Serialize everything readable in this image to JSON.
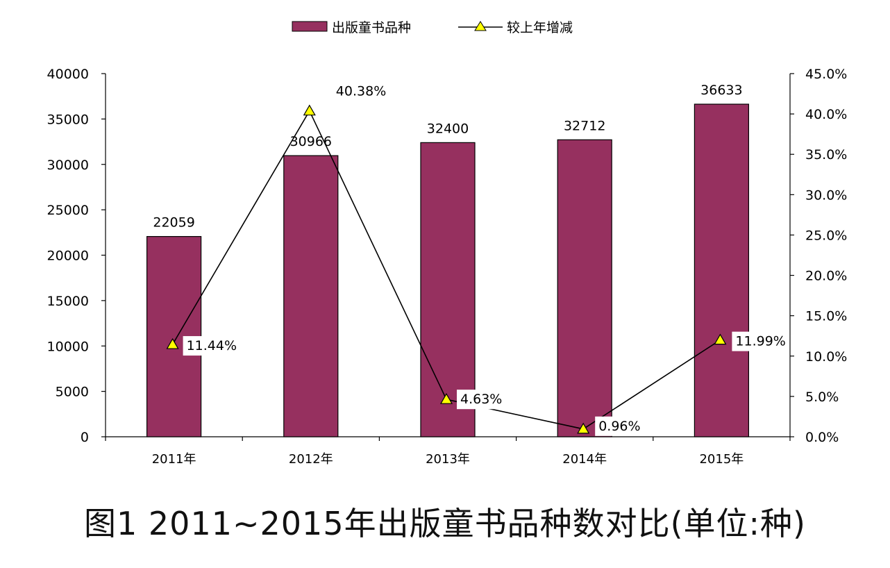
{
  "chart_data": {
    "type": "bar+line",
    "categories": [
      "2011年",
      "2012年",
      "2013年",
      "2014年",
      "2015年"
    ],
    "series": [
      {
        "name": "出版童书品种",
        "type": "bar",
        "axis": "left",
        "values": [
          22059,
          30966,
          32400,
          32712,
          36633
        ],
        "labels": [
          "22059",
          "30966",
          "32400",
          "32712",
          "36633"
        ],
        "color": "#96305F"
      },
      {
        "name": "较上年增减",
        "type": "line",
        "axis": "right",
        "values": [
          11.44,
          40.38,
          4.63,
          0.96,
          11.99
        ],
        "labels": [
          "11.44%",
          "40.38%",
          "4.63%",
          "0.96%",
          "11.99%"
        ],
        "marker": "triangle",
        "marker_color": "#FFFF00",
        "line_color": "#000000"
      }
    ],
    "y_left": {
      "ylim": [
        0,
        40000
      ],
      "ticks": [
        "0",
        "5000",
        "10000",
        "15000",
        "20000",
        "25000",
        "30000",
        "35000",
        "40000"
      ]
    },
    "y_right": {
      "ylim": [
        0,
        45
      ],
      "ticks": [
        "0.0%",
        "5.0%",
        "10.0%",
        "15.0%",
        "20.0%",
        "25.0%",
        "30.0%",
        "35.0%",
        "40.0%",
        "45.0%"
      ]
    },
    "grid": false,
    "legend": "top-center"
  },
  "caption": "图1  2011~2015年出版童书品种数对比(单位:种)"
}
